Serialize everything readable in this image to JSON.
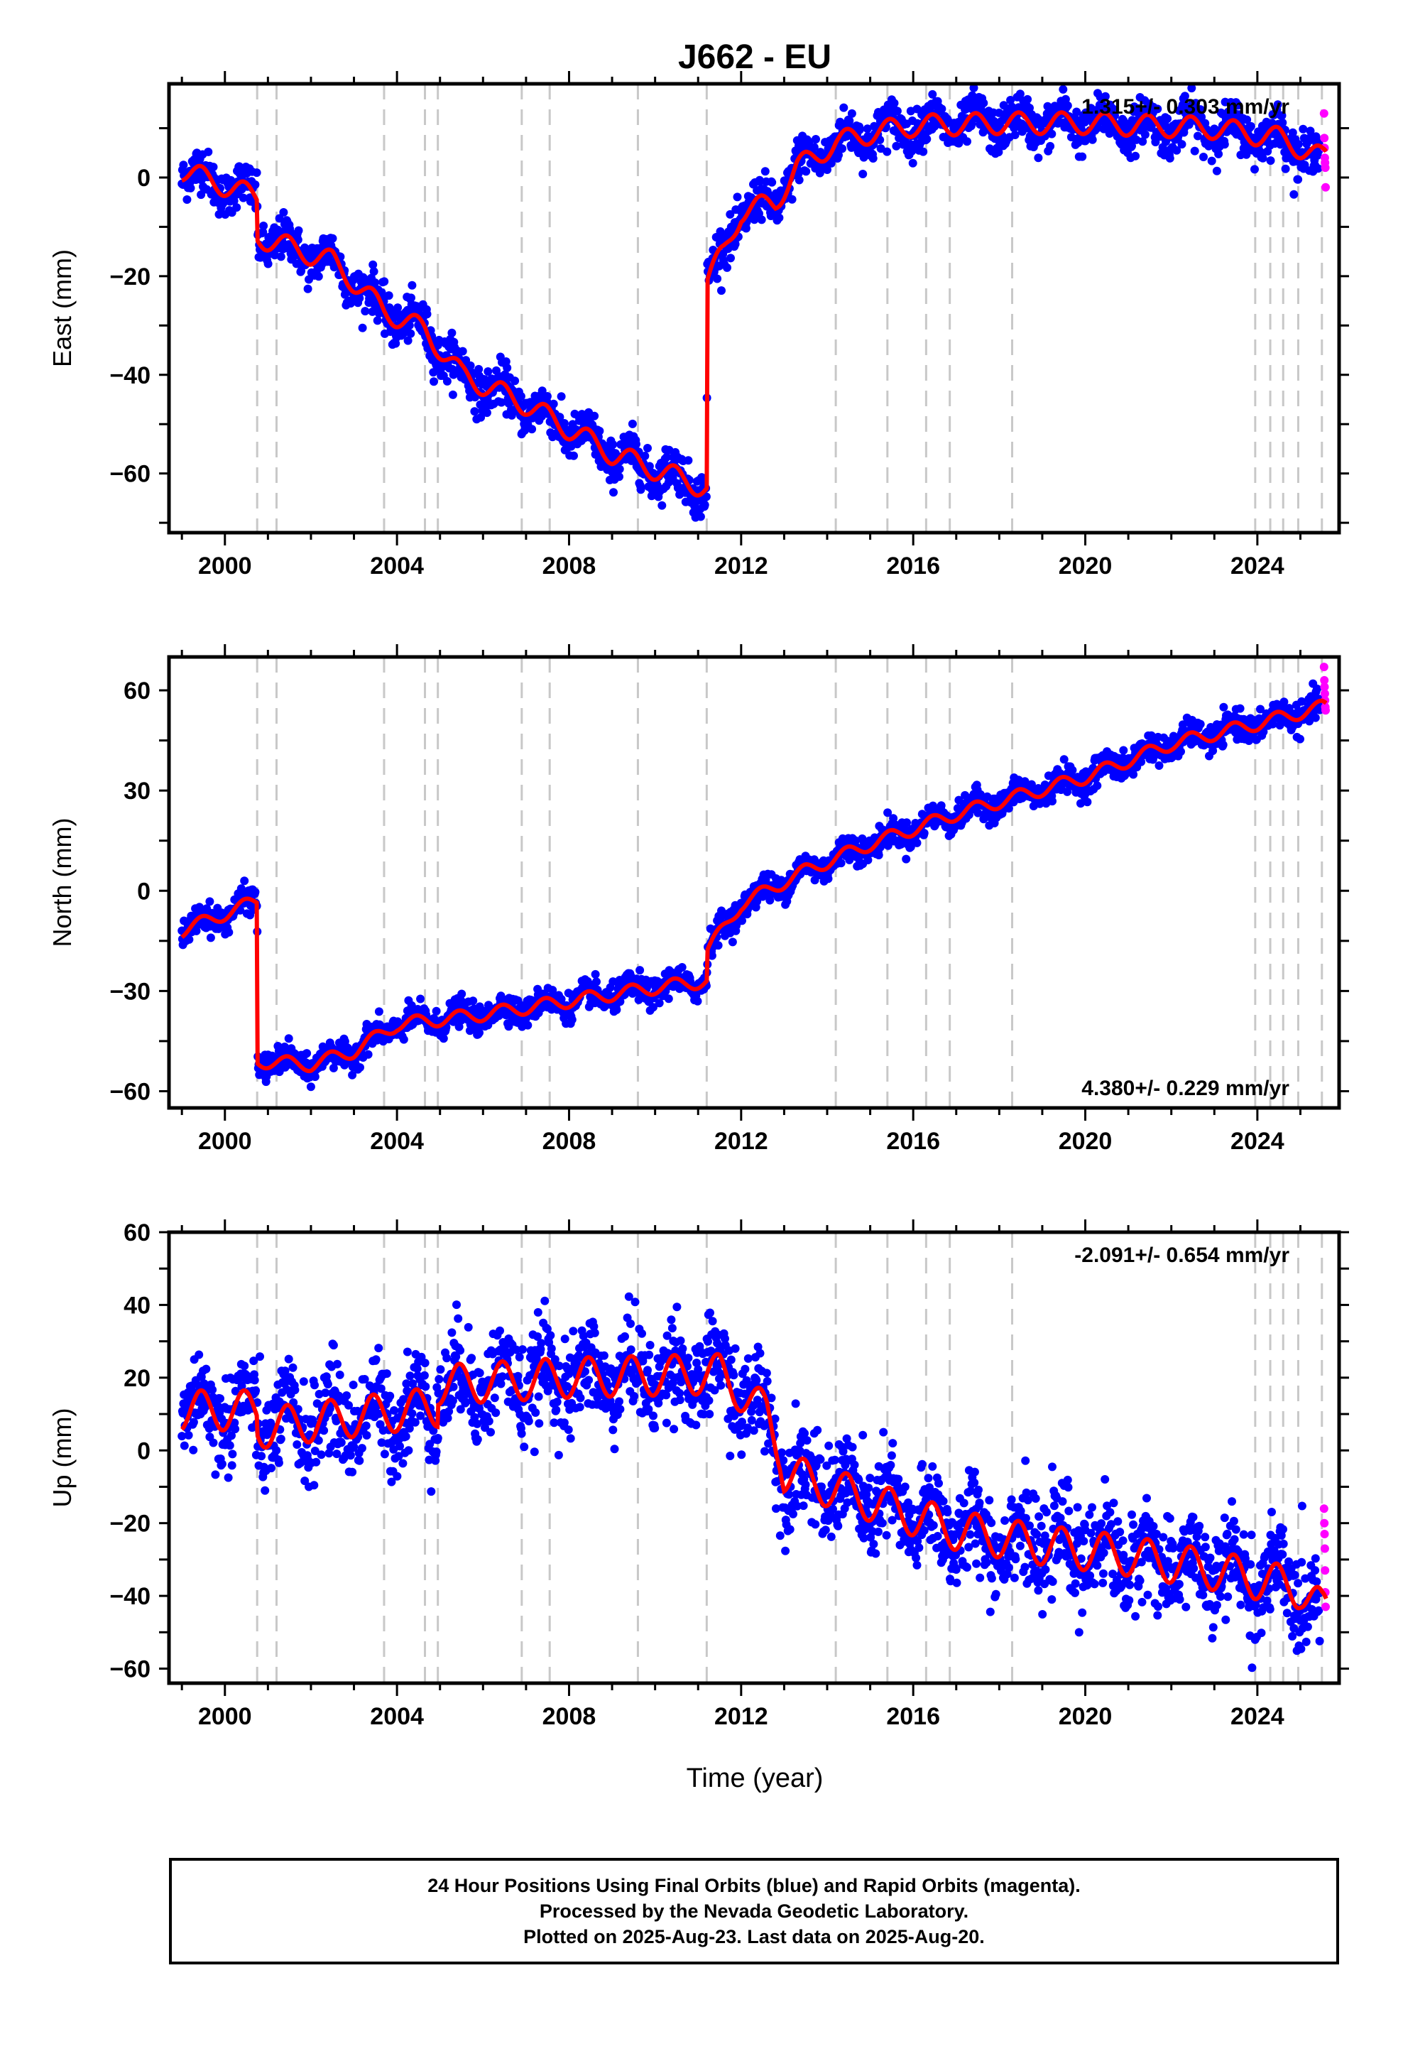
{
  "chart_data": {
    "type": "scatter",
    "title": "J662 - EU",
    "xlabel": "Time (year)",
    "xlim": [
      1998.7,
      2025.9
    ],
    "xticks": [
      "2000",
      "2004",
      "2008",
      "2012",
      "2016",
      "2020",
      "2024"
    ],
    "event_lines": [
      2000.75,
      2001.2,
      2003.7,
      2004.65,
      2004.95,
      2006.9,
      2007.55,
      2009.6,
      2011.2,
      2014.2,
      2015.4,
      2016.3,
      2016.85,
      2018.3,
      2023.95,
      2024.3,
      2024.6,
      2024.95,
      2025.5
    ],
    "legend": "none",
    "grid": false,
    "colors": {
      "final": "#0000ff",
      "rapid": "#ff00ff",
      "model": "#ff0000",
      "events": "#c8c8c8"
    },
    "panels": [
      {
        "name": "east",
        "ylabel": "East (mm)",
        "ylim": [
          -72,
          19
        ],
        "yticks": [
          "0",
          "−20",
          "−40",
          "−60"
        ],
        "velocity_label": "1.315+/- 0.303 mm/yr",
        "velocity_position": "top-right",
        "model_knots": [
          [
            1999.0,
            1.5
          ],
          [
            2000.75,
            -4
          ],
          [
            2000.76,
            -12
          ],
          [
            2002.5,
            -17
          ],
          [
            2003.7,
            -27
          ],
          [
            2004.65,
            -31
          ],
          [
            2005.5,
            -40
          ],
          [
            2007.0,
            -46
          ],
          [
            2009.0,
            -56
          ],
          [
            2011.2,
            -63
          ],
          [
            2011.21,
            -21
          ],
          [
            2011.6,
            -15
          ],
          [
            2012.0,
            -7
          ],
          [
            2012.8,
            -5
          ],
          [
            2013.3,
            2
          ],
          [
            2014.2,
            7
          ],
          [
            2015.0,
            9
          ],
          [
            2016.0,
            10.5
          ],
          [
            2018.0,
            11
          ],
          [
            2020.0,
            11
          ],
          [
            2023.0,
            10
          ],
          [
            2024.5,
            8
          ],
          [
            2025.5,
            4
          ]
        ],
        "noise_mm": 2.2,
        "seasonal_mm": 2.2,
        "rapid_values": [
          13,
          8,
          6,
          4,
          3,
          2,
          -2
        ]
      },
      {
        "name": "north",
        "ylabel": "North (mm)",
        "ylim": [
          -65,
          70
        ],
        "yticks": [
          "60",
          "30",
          "0",
          "−30",
          "−60"
        ],
        "velocity_label": "4.380+/- 0.229 mm/yr",
        "velocity_position": "bottom-right",
        "model_knots": [
          [
            1999.0,
            -12
          ],
          [
            2000.75,
            -3
          ],
          [
            2000.76,
            -51
          ],
          [
            2002.0,
            -52
          ],
          [
            2003.0,
            -48
          ],
          [
            2004.0,
            -40
          ],
          [
            2006.0,
            -37
          ],
          [
            2008.0,
            -33
          ],
          [
            2010.0,
            -29
          ],
          [
            2011.2,
            -27
          ],
          [
            2011.21,
            -18
          ],
          [
            2012.0,
            -4
          ],
          [
            2013.5,
            6
          ],
          [
            2015.0,
            14
          ],
          [
            2017.0,
            23
          ],
          [
            2020.0,
            34
          ],
          [
            2022.0,
            44
          ],
          [
            2024.0,
            50
          ],
          [
            2025.5,
            55
          ]
        ],
        "noise_mm": 2.0,
        "seasonal_mm": 2.0,
        "rapid_values": [
          67,
          63,
          61,
          59,
          57,
          55,
          54
        ]
      },
      {
        "name": "up",
        "ylabel": "Up (mm)",
        "ylim": [
          -64,
          60
        ],
        "yticks": [
          "60",
          "40",
          "20",
          "0",
          "−20",
          "−40",
          "−60"
        ],
        "velocity_label": "-2.091+/- 0.654 mm/yr",
        "velocity_position": "top-right",
        "model_knots": [
          [
            1999.0,
            11
          ],
          [
            2000.75,
            11
          ],
          [
            2000.76,
            6
          ],
          [
            2004.95,
            12
          ],
          [
            2004.96,
            18
          ],
          [
            2008.0,
            20
          ],
          [
            2011.5,
            21
          ],
          [
            2012.6,
            10
          ],
          [
            2012.9,
            0
          ],
          [
            2013.0,
            -6
          ],
          [
            2015.0,
            -14
          ],
          [
            2017.0,
            -22
          ],
          [
            2019.0,
            -26
          ],
          [
            2021.0,
            -29
          ],
          [
            2023.0,
            -33
          ],
          [
            2025.0,
            -38
          ],
          [
            2025.5,
            -44
          ]
        ],
        "noise_mm": 6.5,
        "seasonal_mm": 5.5,
        "rapid_values": [
          -16,
          -20,
          -23,
          -27,
          -33,
          -39,
          -43
        ]
      }
    ]
  },
  "footer": {
    "line1": "24 Hour Positions Using Final Orbits (blue) and Rapid Orbits (magenta).",
    "line2": "Processed by the Nevada Geodetic Laboratory.",
    "line3": "Plotted on 2025-Aug-23. Last data on 2025-Aug-20."
  }
}
